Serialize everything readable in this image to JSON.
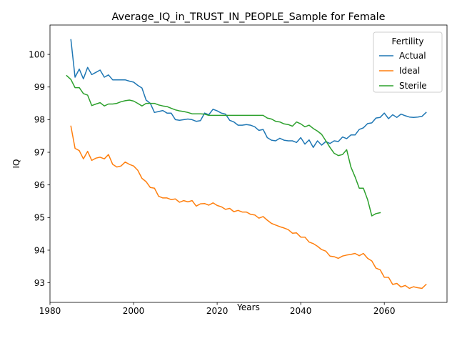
{
  "chart_data": {
    "type": "line",
    "title": "Average_IQ_in_TRUST_IN_PEOPLE_Sample for Female",
    "xlabel": "Years",
    "ylabel": "IQ",
    "xlim": [
      1980,
      2075
    ],
    "ylim": [
      92.4,
      100.9
    ],
    "xticks": [
      1980,
      2000,
      2020,
      2040,
      2060
    ],
    "yticks": [
      93,
      94,
      95,
      96,
      97,
      98,
      99,
      100
    ],
    "grid": false,
    "legend": {
      "title": "Fertility",
      "position": "top-right"
    },
    "series": [
      {
        "name": "Actual",
        "color": "#1f77b4",
        "points": [
          [
            1985,
            100.45
          ],
          [
            1986,
            99.3
          ],
          [
            1987,
            99.55
          ],
          [
            1988,
            99.25
          ],
          [
            1989,
            99.6
          ],
          [
            1990,
            99.38
          ],
          [
            1991,
            99.45
          ],
          [
            1992,
            99.52
          ],
          [
            1993,
            99.3
          ],
          [
            1994,
            99.37
          ],
          [
            1995,
            99.22
          ],
          [
            1996,
            99.22
          ],
          [
            1997,
            99.22
          ],
          [
            1998,
            99.22
          ],
          [
            1999,
            99.18
          ],
          [
            2000,
            99.15
          ],
          [
            2001,
            99.05
          ],
          [
            2002,
            98.97
          ],
          [
            2003,
            98.6
          ],
          [
            2004,
            98.5
          ],
          [
            2005,
            98.22
          ],
          [
            2006,
            98.25
          ],
          [
            2007,
            98.28
          ],
          [
            2008,
            98.2
          ],
          [
            2009,
            98.2
          ],
          [
            2010,
            98.0
          ],
          [
            2011,
            97.98
          ],
          [
            2012,
            98.0
          ],
          [
            2013,
            98.02
          ],
          [
            2014,
            98.0
          ],
          [
            2015,
            97.95
          ],
          [
            2016,
            97.97
          ],
          [
            2017,
            98.2
          ],
          [
            2018,
            98.15
          ],
          [
            2019,
            98.32
          ],
          [
            2020,
            98.27
          ],
          [
            2021,
            98.2
          ],
          [
            2022,
            98.17
          ],
          [
            2023,
            97.98
          ],
          [
            2024,
            97.93
          ],
          [
            2025,
            97.83
          ],
          [
            2026,
            97.83
          ],
          [
            2027,
            97.85
          ],
          [
            2028,
            97.83
          ],
          [
            2029,
            97.78
          ],
          [
            2030,
            97.67
          ],
          [
            2031,
            97.7
          ],
          [
            2032,
            97.45
          ],
          [
            2033,
            97.37
          ],
          [
            2034,
            97.35
          ],
          [
            2035,
            97.43
          ],
          [
            2036,
            97.37
          ],
          [
            2037,
            97.35
          ],
          [
            2038,
            97.35
          ],
          [
            2039,
            97.3
          ],
          [
            2040,
            97.45
          ],
          [
            2041,
            97.25
          ],
          [
            2042,
            97.38
          ],
          [
            2043,
            97.15
          ],
          [
            2044,
            97.35
          ],
          [
            2045,
            97.22
          ],
          [
            2046,
            97.33
          ],
          [
            2047,
            97.27
          ],
          [
            2048,
            97.35
          ],
          [
            2049,
            97.33
          ],
          [
            2050,
            97.47
          ],
          [
            2051,
            97.42
          ],
          [
            2052,
            97.53
          ],
          [
            2053,
            97.53
          ],
          [
            2054,
            97.7
          ],
          [
            2055,
            97.75
          ],
          [
            2056,
            97.88
          ],
          [
            2057,
            97.9
          ],
          [
            2058,
            98.05
          ],
          [
            2059,
            98.07
          ],
          [
            2060,
            98.2
          ],
          [
            2061,
            98.03
          ],
          [
            2062,
            98.15
          ],
          [
            2063,
            98.07
          ],
          [
            2064,
            98.17
          ],
          [
            2065,
            98.12
          ],
          [
            2066,
            98.08
          ],
          [
            2067,
            98.07
          ],
          [
            2068,
            98.08
          ],
          [
            2069,
            98.1
          ],
          [
            2070,
            98.22
          ]
        ]
      },
      {
        "name": "Ideal",
        "color": "#ff7f0e",
        "points": [
          [
            1985,
            97.8
          ],
          [
            1986,
            97.12
          ],
          [
            1987,
            97.05
          ],
          [
            1988,
            96.8
          ],
          [
            1989,
            97.03
          ],
          [
            1990,
            96.75
          ],
          [
            1991,
            96.82
          ],
          [
            1992,
            96.85
          ],
          [
            1993,
            96.8
          ],
          [
            1994,
            96.93
          ],
          [
            1995,
            96.63
          ],
          [
            1996,
            96.55
          ],
          [
            1997,
            96.58
          ],
          [
            1998,
            96.7
          ],
          [
            1999,
            96.63
          ],
          [
            2000,
            96.58
          ],
          [
            2001,
            96.45
          ],
          [
            2002,
            96.2
          ],
          [
            2003,
            96.1
          ],
          [
            2004,
            95.92
          ],
          [
            2005,
            95.9
          ],
          [
            2006,
            95.65
          ],
          [
            2007,
            95.6
          ],
          [
            2008,
            95.6
          ],
          [
            2009,
            95.55
          ],
          [
            2010,
            95.57
          ],
          [
            2011,
            95.47
          ],
          [
            2012,
            95.52
          ],
          [
            2013,
            95.48
          ],
          [
            2014,
            95.52
          ],
          [
            2015,
            95.35
          ],
          [
            2016,
            95.42
          ],
          [
            2017,
            95.43
          ],
          [
            2018,
            95.38
          ],
          [
            2019,
            95.45
          ],
          [
            2020,
            95.37
          ],
          [
            2021,
            95.33
          ],
          [
            2022,
            95.25
          ],
          [
            2023,
            95.28
          ],
          [
            2024,
            95.18
          ],
          [
            2025,
            95.22
          ],
          [
            2026,
            95.17
          ],
          [
            2027,
            95.17
          ],
          [
            2028,
            95.1
          ],
          [
            2029,
            95.08
          ],
          [
            2030,
            94.98
          ],
          [
            2031,
            95.03
          ],
          [
            2032,
            94.92
          ],
          [
            2033,
            94.82
          ],
          [
            2034,
            94.77
          ],
          [
            2035,
            94.72
          ],
          [
            2036,
            94.68
          ],
          [
            2037,
            94.63
          ],
          [
            2038,
            94.52
          ],
          [
            2039,
            94.53
          ],
          [
            2040,
            94.4
          ],
          [
            2041,
            94.4
          ],
          [
            2042,
            94.25
          ],
          [
            2043,
            94.2
          ],
          [
            2044,
            94.12
          ],
          [
            2045,
            94.02
          ],
          [
            2046,
            93.97
          ],
          [
            2047,
            93.82
          ],
          [
            2048,
            93.8
          ],
          [
            2049,
            93.75
          ],
          [
            2050,
            93.82
          ],
          [
            2051,
            93.85
          ],
          [
            2052,
            93.87
          ],
          [
            2053,
            93.9
          ],
          [
            2054,
            93.83
          ],
          [
            2055,
            93.9
          ],
          [
            2056,
            93.75
          ],
          [
            2057,
            93.67
          ],
          [
            2058,
            93.45
          ],
          [
            2059,
            93.4
          ],
          [
            2060,
            93.17
          ],
          [
            2061,
            93.17
          ],
          [
            2062,
            92.95
          ],
          [
            2063,
            92.98
          ],
          [
            2064,
            92.87
          ],
          [
            2065,
            92.92
          ],
          [
            2066,
            92.83
          ],
          [
            2067,
            92.88
          ],
          [
            2068,
            92.85
          ],
          [
            2069,
            92.83
          ],
          [
            2070,
            92.95
          ]
        ]
      },
      {
        "name": "Sterile",
        "color": "#2ca02c",
        "points": [
          [
            1984,
            99.35
          ],
          [
            1985,
            99.23
          ],
          [
            1986,
            98.98
          ],
          [
            1987,
            98.98
          ],
          [
            1988,
            98.8
          ],
          [
            1989,
            98.75
          ],
          [
            1990,
            98.43
          ],
          [
            1991,
            98.48
          ],
          [
            1992,
            98.52
          ],
          [
            1993,
            98.42
          ],
          [
            1994,
            98.48
          ],
          [
            1995,
            98.48
          ],
          [
            1996,
            98.5
          ],
          [
            1997,
            98.55
          ],
          [
            1998,
            98.58
          ],
          [
            1999,
            98.6
          ],
          [
            2000,
            98.57
          ],
          [
            2001,
            98.5
          ],
          [
            2002,
            98.42
          ],
          [
            2003,
            98.5
          ],
          [
            2004,
            98.5
          ],
          [
            2005,
            98.5
          ],
          [
            2006,
            98.45
          ],
          [
            2007,
            98.42
          ],
          [
            2008,
            98.4
          ],
          [
            2009,
            98.35
          ],
          [
            2010,
            98.3
          ],
          [
            2011,
            98.27
          ],
          [
            2012,
            98.25
          ],
          [
            2013,
            98.22
          ],
          [
            2014,
            98.18
          ],
          [
            2015,
            98.18
          ],
          [
            2016,
            98.18
          ],
          [
            2017,
            98.17
          ],
          [
            2018,
            98.13
          ],
          [
            2019,
            98.13
          ],
          [
            2020,
            98.13
          ],
          [
            2021,
            98.13
          ],
          [
            2022,
            98.13
          ],
          [
            2023,
            98.13
          ],
          [
            2024,
            98.13
          ],
          [
            2025,
            98.13
          ],
          [
            2026,
            98.13
          ],
          [
            2027,
            98.13
          ],
          [
            2028,
            98.13
          ],
          [
            2029,
            98.13
          ],
          [
            2030,
            98.13
          ],
          [
            2031,
            98.13
          ],
          [
            2032,
            98.05
          ],
          [
            2033,
            98.02
          ],
          [
            2034,
            97.95
          ],
          [
            2035,
            97.93
          ],
          [
            2036,
            97.87
          ],
          [
            2037,
            97.85
          ],
          [
            2038,
            97.8
          ],
          [
            2039,
            97.93
          ],
          [
            2040,
            97.87
          ],
          [
            2041,
            97.78
          ],
          [
            2042,
            97.83
          ],
          [
            2043,
            97.73
          ],
          [
            2044,
            97.65
          ],
          [
            2045,
            97.55
          ],
          [
            2046,
            97.35
          ],
          [
            2047,
            97.15
          ],
          [
            2048,
            96.97
          ],
          [
            2049,
            96.9
          ],
          [
            2050,
            96.93
          ],
          [
            2051,
            97.08
          ],
          [
            2052,
            96.55
          ],
          [
            2053,
            96.25
          ],
          [
            2054,
            95.9
          ],
          [
            2055,
            95.9
          ],
          [
            2056,
            95.55
          ],
          [
            2057,
            95.05
          ],
          [
            2058,
            95.12
          ],
          [
            2059,
            95.15
          ]
        ]
      }
    ]
  }
}
